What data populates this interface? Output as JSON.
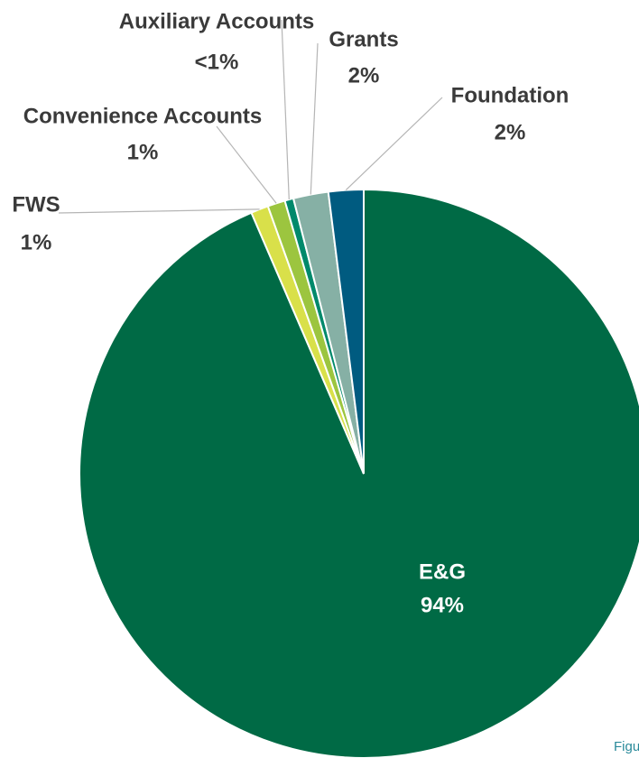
{
  "chart_data": {
    "type": "pie",
    "categories": [
      "E&G",
      "FWS",
      "Convenience Accounts",
      "Auxiliary Accounts",
      "Grants",
      "Foundation"
    ],
    "values": [
      94,
      1,
      1,
      0.5,
      2,
      2
    ],
    "value_labels": [
      "94%",
      "1%",
      "1%",
      "<1%",
      "2%",
      "2%"
    ],
    "colors": [
      "#006a45",
      "#d9e04a",
      "#9cc53f",
      "#00896b",
      "#86b0a5",
      "#005b80"
    ],
    "note": "Figu"
  }
}
